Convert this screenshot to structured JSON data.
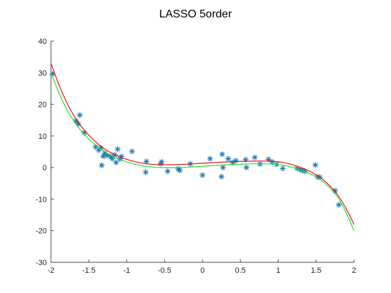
{
  "chart_data": {
    "type": "scatter",
    "title": "LASSO 5order",
    "xlabel": "",
    "ylabel": "",
    "xlim": [
      -2,
      2
    ],
    "ylim": [
      -30,
      40
    ],
    "xticks": [
      -2,
      -1.5,
      -1,
      -0.5,
      0,
      0.5,
      1,
      1.5,
      2
    ],
    "xtick_labels": [
      "-2",
      "-1.5",
      "-1",
      "-0.5",
      "0",
      "0.5",
      "1",
      "1.5",
      "2"
    ],
    "yticks": [
      -30,
      -20,
      -10,
      0,
      10,
      20,
      30,
      40
    ],
    "ytick_labels": [
      "-30",
      "-20",
      "-10",
      "0",
      "10",
      "20",
      "30",
      "40"
    ],
    "grid": false,
    "legend": "none",
    "series": [
      {
        "kind": "scatter",
        "marker": "asterisk",
        "color": "#1f77b4",
        "x": [
          -1.98,
          -1.67,
          -1.64,
          -1.62,
          -1.56,
          -1.41,
          -1.37,
          -1.34,
          -1.33,
          -1.31,
          -1.29,
          -1.26,
          -1.21,
          -1.19,
          -1.16,
          -1.14,
          -1.12,
          -1.09,
          -1.07,
          -0.93,
          -0.75,
          -0.74,
          -0.55,
          -0.54,
          -0.46,
          -0.32,
          -0.3,
          -0.16,
          0.0,
          0.1,
          0.25,
          0.26,
          0.27,
          0.34,
          0.4,
          0.44,
          0.57,
          0.58,
          0.69,
          0.76,
          0.87,
          0.92,
          0.98,
          1.06,
          1.25,
          1.29,
          1.32,
          1.35,
          1.49,
          1.52,
          1.55,
          1.75,
          1.8
        ],
        "y": [
          29.6,
          14.8,
          13.8,
          16.6,
          11.0,
          6.5,
          5.5,
          6.2,
          0.7,
          3.6,
          4.5,
          3.8,
          3.5,
          2.8,
          4.0,
          1.6,
          5.8,
          2.7,
          3.5,
          5.1,
          -1.5,
          1.9,
          1.2,
          1.8,
          -1.2,
          -0.4,
          -0.9,
          1.2,
          -2.4,
          2.8,
          -2.9,
          4.2,
          0.0,
          2.8,
          1.6,
          2.2,
          2.5,
          0.0,
          3.2,
          1.1,
          2.6,
          1.8,
          1.0,
          -0.3,
          -0.3,
          -0.7,
          -0.9,
          -1.2,
          0.8,
          -3.0,
          -3.1,
          -7.3,
          -11.8
        ]
      },
      {
        "kind": "line",
        "color": "#e8141e",
        "x": [
          -2.0,
          -1.9,
          -1.8,
          -1.7,
          -1.6,
          -1.5,
          -1.4,
          -1.3,
          -1.2,
          -1.1,
          -1.0,
          -0.9,
          -0.8,
          -0.7,
          -0.6,
          -0.5,
          -0.4,
          -0.3,
          -0.2,
          -0.1,
          0.0,
          0.1,
          0.2,
          0.3,
          0.4,
          0.5,
          0.6,
          0.7,
          0.8,
          0.9,
          1.0,
          1.1,
          1.2,
          1.3,
          1.4,
          1.5,
          1.6,
          1.7,
          1.8,
          1.9,
          2.0
        ],
        "y": [
          33.0,
          26.5,
          21.0,
          16.5,
          13.0,
          10.2,
          7.9,
          6.0,
          4.6,
          3.5,
          2.6,
          1.9,
          1.4,
          1.1,
          0.95,
          0.9,
          0.9,
          0.95,
          1.05,
          1.2,
          1.35,
          1.5,
          1.65,
          1.75,
          1.85,
          1.95,
          2.0,
          2.05,
          2.05,
          2.0,
          1.8,
          1.4,
          0.8,
          0.0,
          -1.0,
          -2.3,
          -4.0,
          -6.3,
          -9.2,
          -13.2,
          -18.0
        ]
      },
      {
        "kind": "line",
        "color": "#22e022",
        "x": [
          -2.0,
          -1.9,
          -1.8,
          -1.7,
          -1.6,
          -1.5,
          -1.4,
          -1.3,
          -1.2,
          -1.1,
          -1.0,
          -0.9,
          -0.8,
          -0.7,
          -0.6,
          -0.5,
          -0.4,
          -0.3,
          -0.2,
          -0.1,
          0.0,
          0.1,
          0.2,
          0.3,
          0.4,
          0.5,
          0.6,
          0.7,
          0.8,
          0.9,
          1.0,
          1.1,
          1.2,
          1.3,
          1.4,
          1.5,
          1.6,
          1.7,
          1.8,
          1.9,
          2.0
        ],
        "y": [
          30.0,
          23.9,
          18.8,
          14.8,
          11.6,
          9.0,
          6.9,
          5.2,
          3.8,
          2.7,
          1.8,
          1.1,
          0.6,
          0.25,
          0.05,
          -0.05,
          -0.05,
          0.0,
          0.1,
          0.25,
          0.4,
          0.55,
          0.7,
          0.85,
          0.95,
          1.05,
          1.15,
          1.2,
          1.2,
          1.15,
          1.0,
          0.6,
          0.0,
          -0.8,
          -1.8,
          -3.0,
          -4.7,
          -6.9,
          -10.0,
          -14.5,
          -20.0
        ]
      }
    ]
  }
}
